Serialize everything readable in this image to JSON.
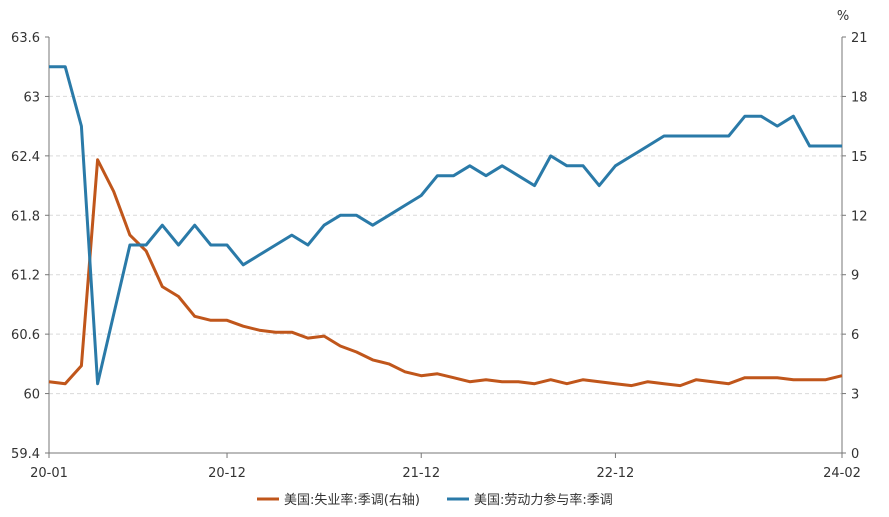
{
  "chart_data": {
    "type": "line",
    "x_tick_labels": [
      "20-01",
      "20-12",
      "21-12",
      "22-12",
      "24-02"
    ],
    "y_left": {
      "ticks": [
        "63.6",
        "63",
        "62.4",
        "61.8",
        "61.2",
        "60.6",
        "60",
        "59.4"
      ],
      "ylim": [
        59.4,
        63.6
      ]
    },
    "y_right": {
      "unit": "%",
      "ticks": [
        "21",
        "18",
        "15",
        "12",
        "9",
        "6",
        "3",
        "0"
      ],
      "ylim": [
        0,
        21
      ]
    },
    "grid": "horizontal dashed",
    "legend_position": "bottom",
    "x": [
      "2020-01",
      "2020-02",
      "2020-03",
      "2020-04",
      "2020-05",
      "2020-06",
      "2020-07",
      "2020-08",
      "2020-09",
      "2020-10",
      "2020-11",
      "2020-12",
      "2021-01",
      "2021-02",
      "2021-03",
      "2021-04",
      "2021-05",
      "2021-06",
      "2021-07",
      "2021-08",
      "2021-09",
      "2021-10",
      "2021-11",
      "2021-12",
      "2022-01",
      "2022-02",
      "2022-03",
      "2022-04",
      "2022-05",
      "2022-06",
      "2022-07",
      "2022-08",
      "2022-09",
      "2022-10",
      "2022-11",
      "2022-12",
      "2023-01",
      "2023-02",
      "2023-03",
      "2023-04",
      "2023-05",
      "2023-06",
      "2023-07",
      "2023-08",
      "2023-09",
      "2023-10",
      "2023-11",
      "2023-12",
      "2024-01",
      "2024-02"
    ],
    "series": [
      {
        "name": "美国:失业率:季调(右轴)",
        "axis": "right",
        "color": "#c0561b",
        "values": [
          3.6,
          3.5,
          4.4,
          14.8,
          13.2,
          11.0,
          10.2,
          8.4,
          7.9,
          6.9,
          6.7,
          6.7,
          6.4,
          6.2,
          6.1,
          6.1,
          5.8,
          5.9,
          5.4,
          5.1,
          4.7,
          4.5,
          4.1,
          3.9,
          4.0,
          3.8,
          3.6,
          3.7,
          3.6,
          3.6,
          3.5,
          3.7,
          3.5,
          3.7,
          3.6,
          3.5,
          3.4,
          3.6,
          3.5,
          3.4,
          3.7,
          3.6,
          3.5,
          3.8,
          3.8,
          3.8,
          3.7,
          3.7,
          3.7,
          3.9
        ]
      },
      {
        "name": "美国:劳动力参与率:季调",
        "axis": "left",
        "color": "#2a7aa8",
        "values": [
          63.3,
          63.3,
          62.7,
          60.1,
          60.8,
          61.5,
          61.5,
          61.7,
          61.5,
          61.7,
          61.5,
          61.5,
          61.3,
          61.4,
          61.5,
          61.6,
          61.5,
          61.7,
          61.8,
          61.8,
          61.7,
          61.8,
          61.9,
          62.0,
          62.2,
          62.2,
          62.3,
          62.2,
          62.3,
          62.2,
          62.1,
          62.4,
          62.3,
          62.3,
          62.1,
          62.3,
          62.4,
          62.5,
          62.6,
          62.6,
          62.6,
          62.6,
          62.6,
          62.8,
          62.8,
          62.7,
          62.8,
          62.5,
          62.5,
          62.5
        ]
      }
    ]
  }
}
